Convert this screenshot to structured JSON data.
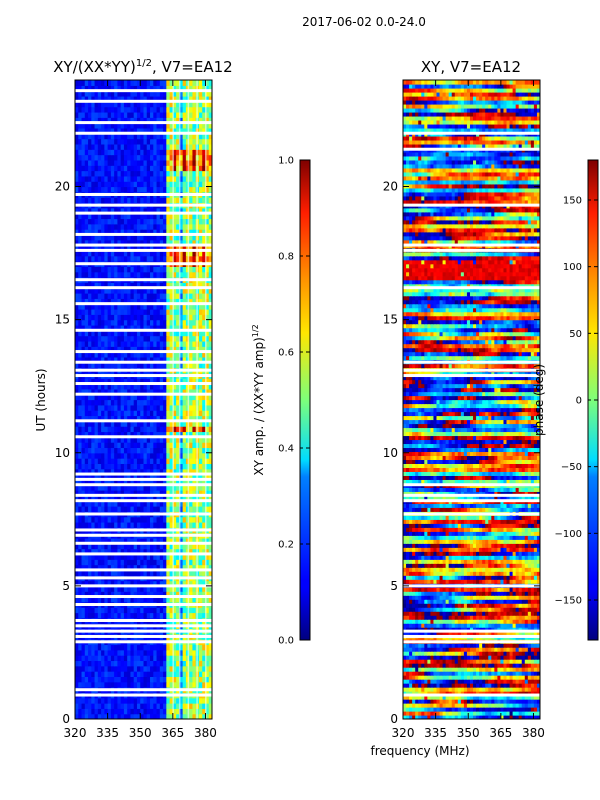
{
  "chart_data": [
    {
      "type": "heatmap",
      "panel": "left",
      "suptitle": "2017-06-02 0.0-24.0",
      "title_prefix": "XY/(XX*YY)",
      "title_superscript": "1/2",
      "title_suffix": ", V7=EA12",
      "xlabel": "",
      "ylabel": "UT (hours)",
      "xlim": [
        320,
        383
      ],
      "ylim": [
        0,
        24
      ],
      "xticks": [
        "320",
        "335",
        "350",
        "365",
        "380"
      ],
      "xtick_values": [
        320,
        335,
        350,
        365,
        380
      ],
      "yticks": [
        "0",
        "5",
        "10",
        "15",
        "20"
      ],
      "ytick_values": [
        0,
        5,
        10,
        15,
        20
      ],
      "bright_channels_mhz": [
        363,
        366,
        370,
        374,
        378,
        381
      ],
      "flagged_gap_hours": [
        0.9,
        1.1,
        2.9,
        3.1,
        3.3,
        3.5,
        3.7,
        4.3,
        4.6,
        5.0,
        5.3,
        5.6,
        6.2,
        6.6,
        6.9,
        7.1,
        7.7,
        8.2,
        8.4,
        8.8,
        9.0,
        9.2,
        10.6,
        11.2,
        12.2,
        12.6,
        12.9,
        13.1,
        13.4,
        13.8,
        14.6,
        15.6,
        16.2,
        16.5,
        17.1,
        17.6,
        17.8,
        18.2,
        19.0,
        19.3,
        19.7,
        22.0,
        22.4,
        23.2,
        23.6
      ],
      "hot_rows_hours": [
        10.8,
        17.1,
        17.5,
        20.6,
        20.9,
        21.1
      ]
    },
    {
      "type": "heatmap",
      "panel": "right",
      "title": "XY, V7=EA12",
      "xlabel": "frequency (MHz)",
      "ylabel": "",
      "xlim": [
        320,
        383
      ],
      "ylim": [
        0,
        24
      ],
      "xticks": [
        "320",
        "335",
        "350",
        "365",
        "380"
      ],
      "xtick_values": [
        320,
        335,
        350,
        365,
        380
      ],
      "yticks": [
        "0",
        "5",
        "10",
        "15",
        "20"
      ],
      "ytick_values": [
        0,
        5,
        10,
        15,
        20
      ],
      "flagged_gap_hours": [
        0.9,
        2.9,
        3.1,
        3.3,
        5.0,
        7.7,
        8.2,
        8.4,
        8.8,
        12.9,
        13.1,
        13.4,
        16.2,
        17.6,
        17.8,
        19.3,
        21.4,
        22.0
      ]
    }
  ],
  "colorbars": [
    {
      "label_prefix": "XY amp. / (XX*YY amp)",
      "label_superscript": "1/2",
      "range": [
        0.0,
        1.0
      ],
      "ticks": [
        "0.0",
        "0.2",
        "0.4",
        "0.6",
        "0.8",
        "1.0"
      ],
      "tick_values": [
        0.0,
        0.2,
        0.4,
        0.6,
        0.8,
        1.0
      ]
    },
    {
      "label": "phase (deg)",
      "range": [
        -180,
        180
      ],
      "ticks": [
        "−150",
        "−100",
        "−50",
        "0",
        "50",
        "100",
        "150"
      ],
      "tick_values": [
        -150,
        -100,
        -50,
        0,
        50,
        100,
        150
      ]
    }
  ]
}
